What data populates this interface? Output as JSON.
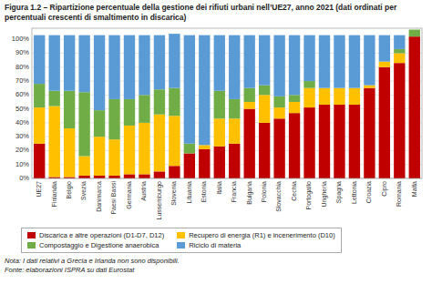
{
  "chart_data": {
    "type": "bar",
    "stacked": true,
    "title": "Figura 1.2 – Ripartizione percentuale della gestione dei rifiuti urbani nell’UE27, anno 2021 (dati ordinati per percentuali crescenti di smaltimento in discarica)",
    "annotations": [
      "Nota: I dati relativi a Grecia e Irlanda non sono disponibili.",
      "Fonte: elaborazioni ISPRA su dati Eurostat"
    ],
    "categories": [
      "UE27",
      "Finlandia",
      "Belgio",
      "Svezia",
      "Danimarca",
      "Paesi Bassi",
      "Germania",
      "Austria",
      "Lussemburgo",
      "Slovenia",
      "Lituania",
      "Estonia",
      "Italia",
      "Francia",
      "Bulgaria",
      "Polonia",
      "Slovacchia",
      "Cechia",
      "Portogallo",
      "Ungheria",
      "Spagna",
      "Lettonia",
      "Croazia",
      "Cipro",
      "Romania",
      "Malta"
    ],
    "series": [
      {
        "name": "Discarica e altre operazioni (D1-D7, D12)",
        "color": "#c00000",
        "values": [
          25,
          1,
          1,
          2,
          2,
          2,
          3,
          3,
          5,
          9,
          18,
          21,
          23,
          25,
          50,
          40,
          43,
          47,
          51,
          53,
          53,
          53,
          65,
          80,
          83,
          102
        ]
      },
      {
        "name": "Recupero di energia (R1) e incenerimento (D10)",
        "color": "#ffc000",
        "values": [
          26,
          51,
          35,
          14,
          28,
          26,
          35,
          37,
          41,
          36,
          0,
          3,
          20,
          18,
          5,
          20,
          8,
          8,
          14,
          12,
          12,
          12,
          2,
          4,
          7,
          0
        ]
      },
      {
        "name": "Compostaggio e Digestione anaerobica",
        "color": "#70ad47",
        "values": [
          17,
          11,
          27,
          46,
          19,
          29,
          19,
          20,
          18,
          20,
          7,
          0,
          20,
          14,
          10,
          7,
          8,
          5,
          5,
          0,
          0,
          0,
          0,
          0,
          3,
          5
        ]
      },
      {
        "name": "Riciclo di materia",
        "color": "#5b9bd5",
        "values": [
          35,
          40,
          40,
          41,
          54,
          46,
          46,
          43,
          39,
          39,
          78,
          79,
          40,
          46,
          38,
          36,
          44,
          43,
          33,
          38,
          38,
          38,
          36,
          19,
          10,
          0
        ]
      }
    ],
    "ylim": [
      0,
      108
    ],
    "yticks": [
      {
        "value": 0,
        "label": "0%"
      },
      {
        "value": 10,
        "label": "10%"
      },
      {
        "value": 20,
        "label": "20%"
      },
      {
        "value": 30,
        "label": "30%"
      },
      {
        "value": 40,
        "label": "40%"
      },
      {
        "value": 50,
        "label": "50%"
      },
      {
        "value": 60,
        "label": "60%"
      },
      {
        "value": 70,
        "label": "70%"
      },
      {
        "value": 80,
        "label": "80%"
      },
      {
        "value": 90,
        "label": "90%"
      },
      {
        "value": 100,
        "label": "100%"
      }
    ],
    "grid": true,
    "legend": "bottom"
  }
}
